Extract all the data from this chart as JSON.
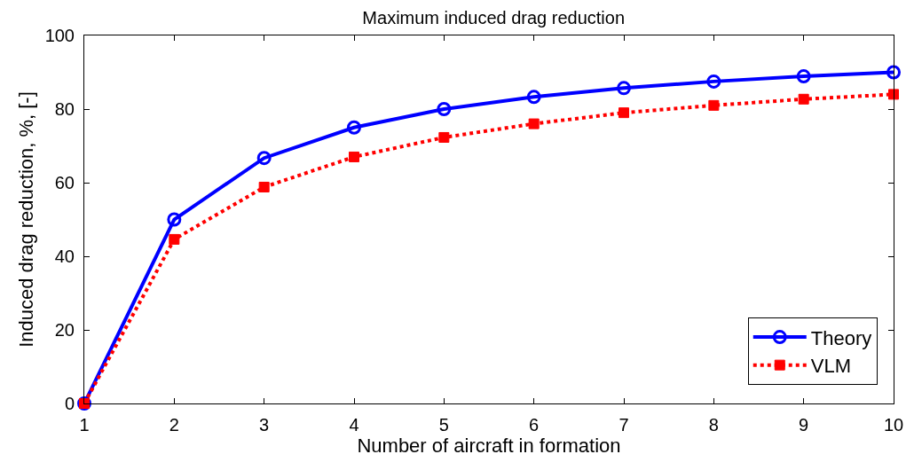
{
  "chart_data": {
    "type": "line",
    "title": "Maximum induced drag reduction",
    "xlabel": "Number of aircraft in formation",
    "ylabel": "Induced drag reduction, %, [-]",
    "x": [
      1,
      2,
      3,
      4,
      5,
      6,
      7,
      8,
      9,
      10
    ],
    "series": [
      {
        "name": "Theory",
        "color": "#0000ff",
        "marker": "circle",
        "line_style": "solid",
        "values": [
          0,
          50,
          66.7,
          75,
          80,
          83.3,
          85.7,
          87.5,
          88.9,
          90
        ]
      },
      {
        "name": "VLM",
        "color": "#ff0000",
        "marker": "square",
        "line_style": "dotted",
        "values": [
          0,
          44.6,
          58.8,
          67,
          72.3,
          76,
          79,
          81,
          82.7,
          84
        ]
      }
    ],
    "xlim": [
      1,
      10
    ],
    "xticks": [
      1,
      2,
      3,
      4,
      5,
      6,
      7,
      8,
      9,
      10
    ],
    "ylim": [
      0,
      100
    ],
    "yticks": [
      0,
      20,
      40,
      60,
      80,
      100
    ],
    "legend": "bottom right"
  }
}
